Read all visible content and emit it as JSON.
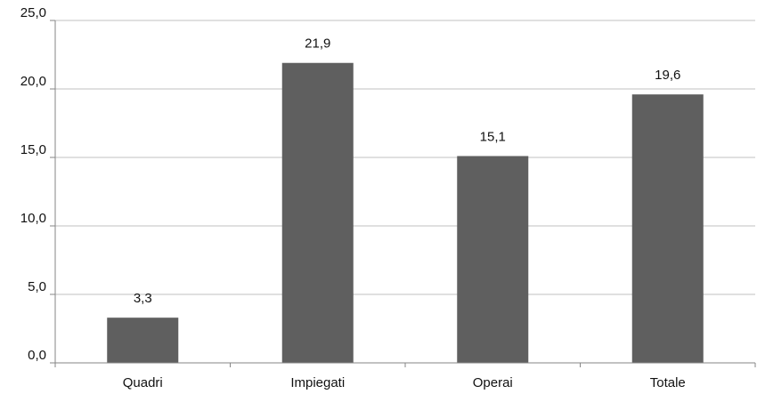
{
  "chart_data": {
    "type": "bar",
    "categories": [
      "Quadri",
      "Impiegati",
      "Operai",
      "Totale"
    ],
    "values": [
      3.3,
      21.9,
      15.1,
      19.6
    ],
    "data_labels": [
      "3,3",
      "21,9",
      "15,1",
      "19,6"
    ],
    "ylim": [
      0,
      25
    ],
    "yticks": [
      0,
      5,
      10,
      15,
      20,
      25
    ],
    "ytick_labels": [
      "0,0",
      "5,0",
      "10,0",
      "15,0",
      "20,0",
      "25,0"
    ],
    "title": "",
    "xlabel": "",
    "ylabel": "",
    "grid": true,
    "legend": "none",
    "bar_color": "#5f5f5f",
    "grid_color": "#c0c0c0",
    "axis_color": "#868686"
  }
}
